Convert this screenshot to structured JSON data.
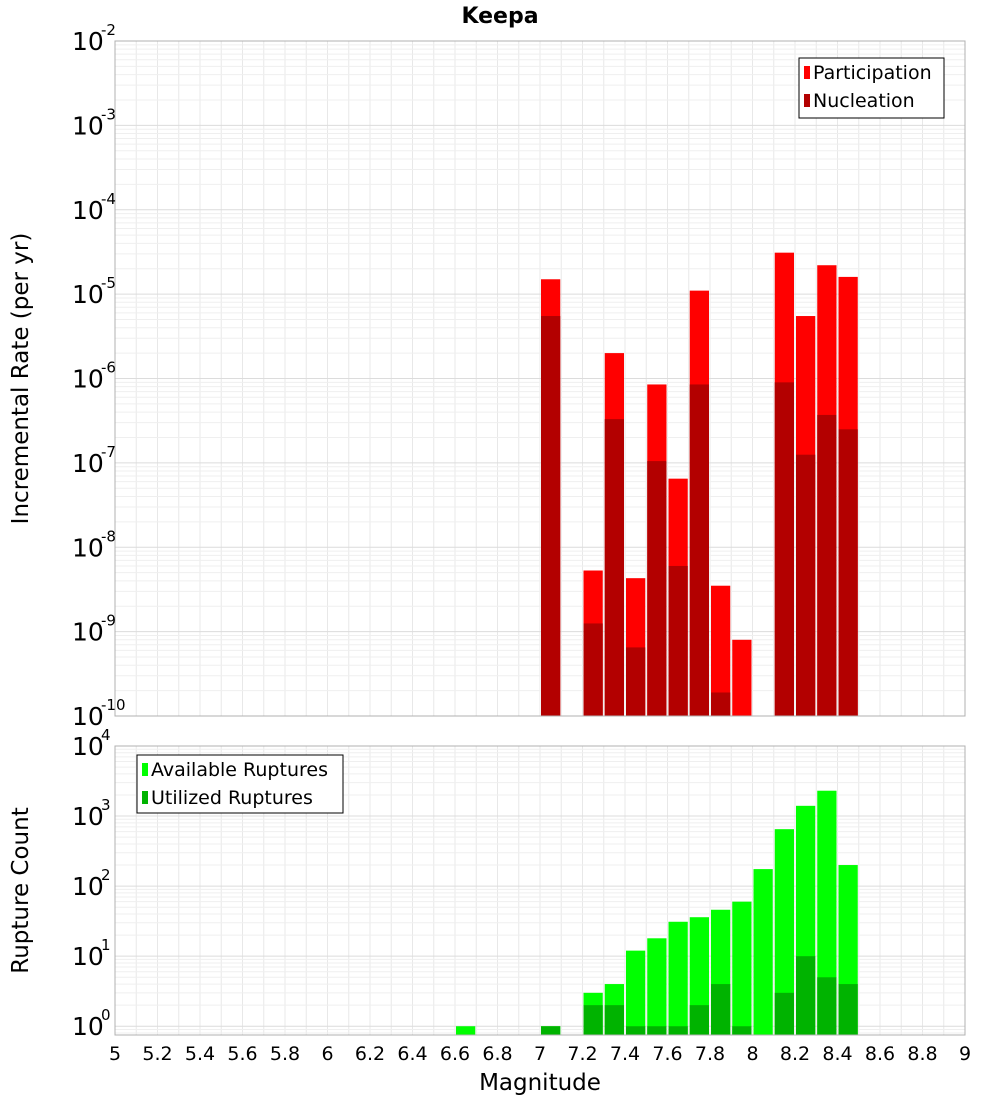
{
  "chart_data": [
    {
      "type": "bar",
      "title": "Keepa",
      "xlabel": "",
      "ylabel": "Incremental Rate (per yr)",
      "yscale": "log",
      "ylim": [
        1e-10,
        0.01
      ],
      "xlim": [
        5,
        9
      ],
      "ytick_exponents": [
        -10,
        -9,
        -8,
        -7,
        -6,
        -5,
        -4,
        -3,
        -2
      ],
      "grid": true,
      "legend_position": "top-right",
      "bar_width": 0.1,
      "x": [
        7.05,
        7.25,
        7.35,
        7.45,
        7.55,
        7.65,
        7.75,
        7.85,
        7.95,
        8.15,
        8.25,
        8.35,
        8.45
      ],
      "series": [
        {
          "name": "Participation",
          "color": "#ff0000",
          "values": [
            1.5e-05,
            5.3e-09,
            2e-06,
            4.3e-09,
            8.5e-07,
            6.5e-08,
            1.1e-05,
            3.5e-09,
            8e-10,
            3.1e-05,
            5.5e-06,
            2.2e-05,
            1.6e-05
          ]
        },
        {
          "name": "Nucleation",
          "color": "#b30000",
          "values": [
            5.5e-06,
            1.25e-09,
            3.3e-07,
            6.5e-10,
            1.05e-07,
            6e-09,
            8.5e-07,
            1.9e-10,
            null,
            9e-07,
            1.25e-07,
            3.7e-07,
            2.5e-07
          ]
        }
      ]
    },
    {
      "type": "bar",
      "title": "",
      "xlabel": "Magnitude",
      "ylabel": "Rupture Count",
      "yscale": "log",
      "ylim": [
        0.75,
        10000
      ],
      "xlim": [
        5,
        9
      ],
      "ytick_exponents": [
        0,
        1,
        2,
        3,
        4
      ],
      "xticks": [
        "5",
        "5.2",
        "5.4",
        "5.6",
        "5.8",
        "6",
        "6.2",
        "6.4",
        "6.6",
        "6.8",
        "7",
        "7.2",
        "7.4",
        "7.6",
        "7.8",
        "8",
        "8.2",
        "8.4",
        "8.6",
        "8.8",
        "9"
      ],
      "grid": true,
      "legend_position": "top-left",
      "bar_width": 0.1,
      "x": [
        6.65,
        7.05,
        7.25,
        7.35,
        7.45,
        7.55,
        7.65,
        7.75,
        7.85,
        7.95,
        8.05,
        8.15,
        8.25,
        8.35,
        8.45
      ],
      "series": [
        {
          "name": "Available Ruptures",
          "color": "#00ff00",
          "values": [
            1,
            1,
            3,
            4,
            12,
            18,
            31,
            36,
            46,
            60,
            175,
            650,
            1400,
            2300,
            200
          ]
        },
        {
          "name": "Utilized Ruptures",
          "color": "#00b300",
          "values": [
            null,
            1,
            2,
            2,
            1,
            1,
            1,
            2,
            4,
            1,
            null,
            3,
            10,
            5,
            4
          ]
        }
      ]
    }
  ]
}
